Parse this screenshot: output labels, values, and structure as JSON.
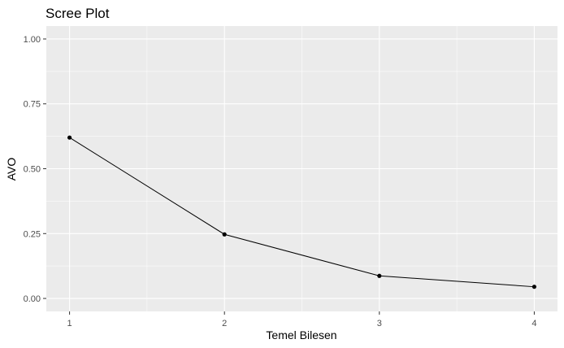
{
  "chart_data": {
    "type": "line",
    "title": "Scree Plot",
    "xlabel": "Temel Bilesen",
    "ylabel": "AVO",
    "x": [
      1,
      2,
      3,
      4
    ],
    "series": [
      {
        "values": [
          0.62,
          0.247,
          0.087,
          0.045
        ]
      }
    ],
    "xticks": [
      "1",
      "2",
      "3",
      "4"
    ],
    "yticks": [
      "0.00",
      "0.25",
      "0.50",
      "0.75",
      "1.00"
    ],
    "xlim": [
      0.85,
      4.15
    ],
    "ylim": [
      -0.05,
      1.05
    ],
    "grid": true,
    "colors": {
      "panel": "#ebebeb",
      "gridMajor": "#ffffff",
      "line": "#000000",
      "point": "#000000",
      "tick": "#333333"
    }
  }
}
